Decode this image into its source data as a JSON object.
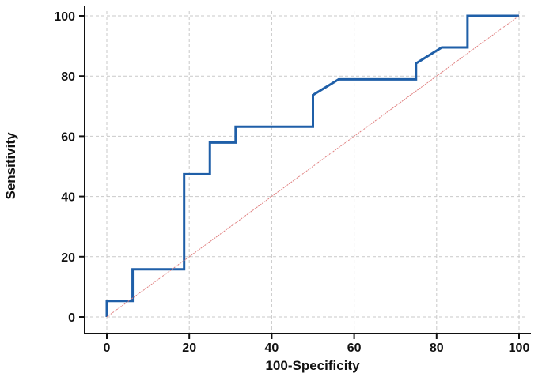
{
  "chart_data": {
    "type": "line",
    "xlabel": "100-Specificity",
    "ylabel": "Sensitivity",
    "xlim": [
      0,
      100
    ],
    "ylim": [
      0,
      100
    ],
    "xticks": [
      "0",
      "20",
      "40",
      "60",
      "80",
      "100"
    ],
    "yticks": [
      "0",
      "20",
      "40",
      "60",
      "80",
      "100"
    ],
    "grid": true,
    "series": [
      {
        "role": "roc-curve",
        "color": "#1f5fa8",
        "x": [
          0,
          0,
          6.25,
          6.25,
          18.75,
          18.75,
          25,
          25,
          31.25,
          31.25,
          50,
          50,
          56.25,
          75,
          75,
          81.25,
          87.5,
          87.5,
          100
        ],
        "y": [
          0,
          5.3,
          5.3,
          15.8,
          15.8,
          47.4,
          47.4,
          57.9,
          57.9,
          63.2,
          63.2,
          73.7,
          78.9,
          78.9,
          84.2,
          89.5,
          89.5,
          100,
          100
        ]
      },
      {
        "role": "reference-diagonal",
        "color": "#e08080",
        "x": [
          0,
          100
        ],
        "y": [
          0,
          100
        ]
      }
    ]
  }
}
